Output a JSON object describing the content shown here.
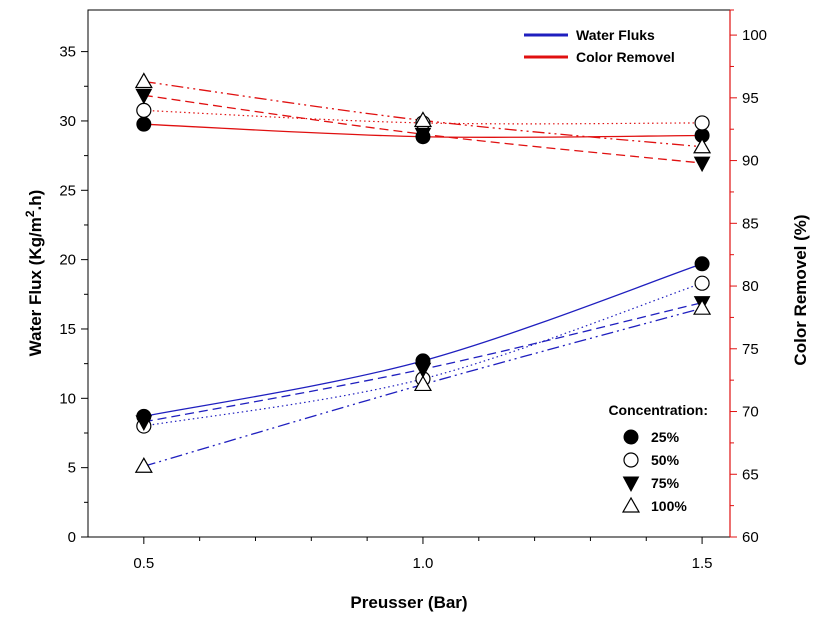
{
  "chart_data": {
    "type": "line",
    "xlabel": "Preusser (Bar)",
    "ylabel": "Water Flux  (Kg/m",
    "ylabel_sup": "2",
    "ylabel_tail": ".h)",
    "y2label": "Color Removel (%)",
    "x_ticks": [
      "0.5",
      "1.0",
      "1.5"
    ],
    "y_ticks": [
      "0",
      "5",
      "10",
      "15",
      "20",
      "25",
      "30",
      "35"
    ],
    "y2_ticks": [
      "60",
      "65",
      "70",
      "75",
      "80",
      "85",
      "90",
      "95",
      "100"
    ],
    "xlim": [
      0.4,
      1.55
    ],
    "ylim": [
      0,
      38
    ],
    "y2lim": [
      60,
      102
    ],
    "x": [
      0.5,
      1.0,
      1.5
    ],
    "legend": {
      "position": "top-right",
      "lines": [
        {
          "label": "Water Fluks",
          "color": "#1f1fbf"
        },
        {
          "label": "Color Removel",
          "color": "#e01010"
        }
      ],
      "markers_title": "Concentration:",
      "markers": [
        {
          "label": "25%",
          "marker": "filled-circle"
        },
        {
          "label": "50%",
          "marker": "open-circle"
        },
        {
          "label": "75%",
          "marker": "filled-triangle-down"
        },
        {
          "label": "100%",
          "marker": "open-triangle-up"
        }
      ]
    },
    "series": [
      {
        "group": "water_flux",
        "concentration": "25%",
        "axis": "left",
        "marker": "filled-circle",
        "dash": "solid",
        "values": [
          8.7,
          12.7,
          19.7
        ]
      },
      {
        "group": "water_flux",
        "concentration": "50%",
        "axis": "left",
        "marker": "open-circle",
        "dash": "dotted",
        "values": [
          8.0,
          11.4,
          18.3
        ]
      },
      {
        "group": "water_flux",
        "concentration": "75%",
        "axis": "left",
        "marker": "filled-triangle-down",
        "dash": "dashed",
        "values": [
          8.3,
          12.1,
          16.9
        ]
      },
      {
        "group": "water_flux",
        "concentration": "100%",
        "axis": "left",
        "marker": "open-triangle-up",
        "dash": "dash-dot-dot",
        "values": [
          5.1,
          11.0,
          16.5
        ]
      },
      {
        "group": "color_removal",
        "concentration": "25%",
        "axis": "right",
        "marker": "filled-circle",
        "dash": "solid",
        "values": [
          92.9,
          91.9,
          92.0
        ]
      },
      {
        "group": "color_removal",
        "concentration": "50%",
        "axis": "right",
        "marker": "open-circle",
        "dash": "dotted",
        "values": [
          94.0,
          93.0,
          93.0
        ]
      },
      {
        "group": "color_removal",
        "concentration": "75%",
        "axis": "right",
        "marker": "filled-triangle-down",
        "dash": "dashed",
        "values": [
          95.2,
          92.1,
          89.8
        ]
      },
      {
        "group": "color_removal",
        "concentration": "100%",
        "axis": "right",
        "marker": "open-triangle-up",
        "dash": "dash-dot-dot",
        "values": [
          96.3,
          93.2,
          91.1
        ]
      }
    ],
    "colors": {
      "left_axis": "#000000",
      "right_axis": "#e01010",
      "water_flux": "#1f1fbf",
      "color_removal": "#e01010"
    }
  }
}
